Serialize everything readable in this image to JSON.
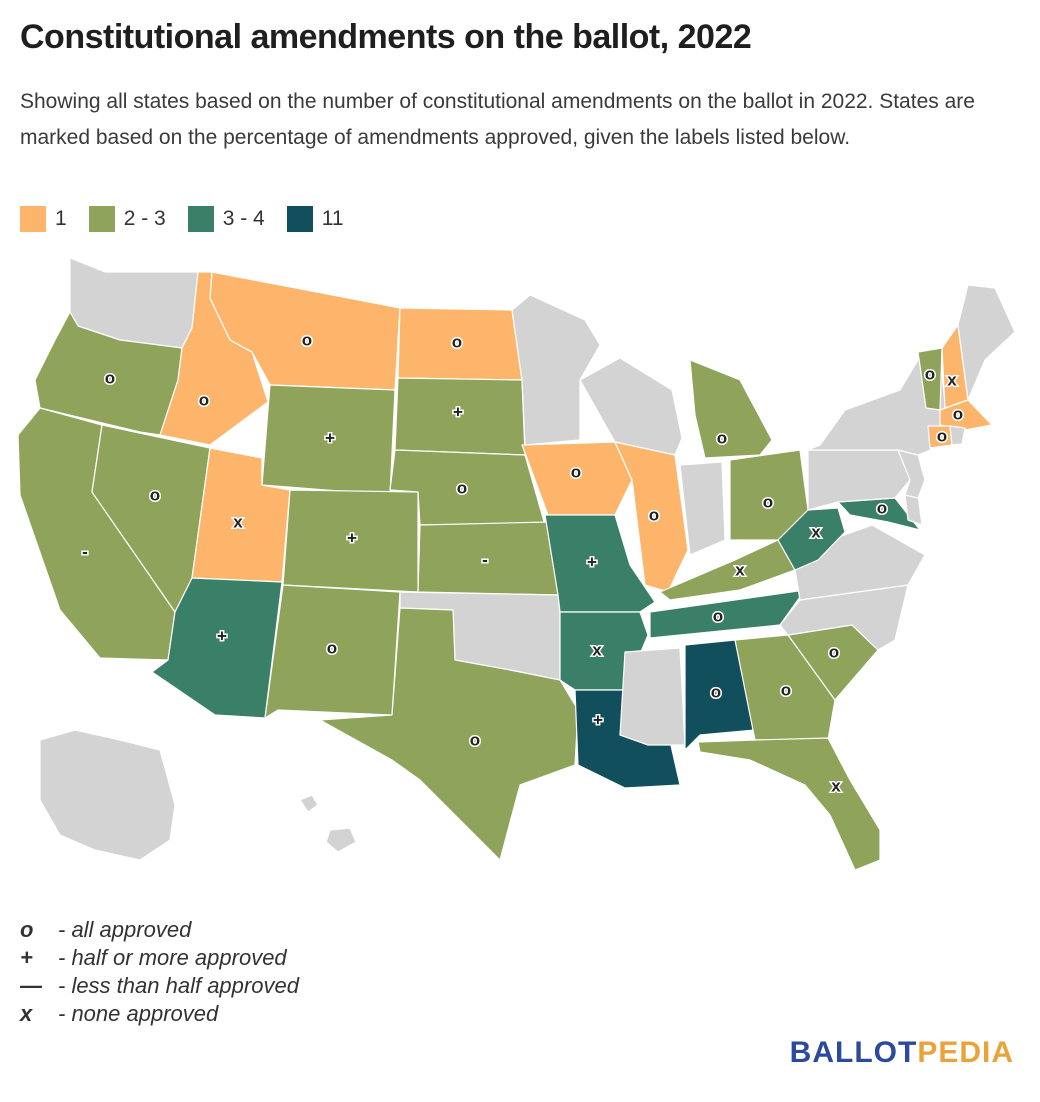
{
  "title": "Constitutional amendments on the ballot, 2022",
  "subtitle": "Showing all states based on the number of constitutional amendments on the ballot in 2022. States are marked based on the percentage of amendments approved, given the labels listed below.",
  "legend": [
    {
      "label": "1",
      "color": "#fdb56c"
    },
    {
      "label": "2 - 3",
      "color": "#8fa35a"
    },
    {
      "label": "3 - 4",
      "color": "#3a7f68"
    },
    {
      "label": "11",
      "color": "#124f5c"
    }
  ],
  "no_data_color": "#d3d3d3",
  "states": [
    {
      "name": "Washington",
      "category": "none",
      "marker": ""
    },
    {
      "name": "Oregon",
      "category": "2 - 3",
      "marker": "o"
    },
    {
      "name": "California",
      "category": "2 - 3",
      "marker": "-"
    },
    {
      "name": "Nevada",
      "category": "2 - 3",
      "marker": "o"
    },
    {
      "name": "Idaho",
      "category": "1",
      "marker": "o"
    },
    {
      "name": "Montana",
      "category": "1",
      "marker": "o"
    },
    {
      "name": "Wyoming",
      "category": "2 - 3",
      "marker": "+"
    },
    {
      "name": "Utah",
      "category": "1",
      "marker": "x"
    },
    {
      "name": "Arizona",
      "category": "3 - 4",
      "marker": "+"
    },
    {
      "name": "Colorado",
      "category": "2 - 3",
      "marker": "+"
    },
    {
      "name": "New Mexico",
      "category": "2 - 3",
      "marker": "o"
    },
    {
      "name": "North Dakota",
      "category": "1",
      "marker": "o"
    },
    {
      "name": "South Dakota",
      "category": "2 - 3",
      "marker": "+"
    },
    {
      "name": "Nebraska",
      "category": "2 - 3",
      "marker": "o"
    },
    {
      "name": "Kansas",
      "category": "2 - 3",
      "marker": "-"
    },
    {
      "name": "Oklahoma",
      "category": "none",
      "marker": ""
    },
    {
      "name": "Texas",
      "category": "2 - 3",
      "marker": "o"
    },
    {
      "name": "Minnesota",
      "category": "none",
      "marker": ""
    },
    {
      "name": "Iowa",
      "category": "1",
      "marker": "o"
    },
    {
      "name": "Missouri",
      "category": "3 - 4",
      "marker": "+"
    },
    {
      "name": "Arkansas",
      "category": "3 - 4",
      "marker": "x"
    },
    {
      "name": "Louisiana",
      "category": "11",
      "marker": "+"
    },
    {
      "name": "Wisconsin",
      "category": "none",
      "marker": ""
    },
    {
      "name": "Illinois",
      "category": "1",
      "marker": "o"
    },
    {
      "name": "Michigan",
      "category": "2 - 3",
      "marker": "o"
    },
    {
      "name": "Indiana",
      "category": "none",
      "marker": ""
    },
    {
      "name": "Ohio",
      "category": "2 - 3",
      "marker": "o"
    },
    {
      "name": "Kentucky",
      "category": "2 - 3",
      "marker": "x"
    },
    {
      "name": "Tennessee",
      "category": "3 - 4",
      "marker": "o"
    },
    {
      "name": "Mississippi",
      "category": "none",
      "marker": ""
    },
    {
      "name": "Alabama",
      "category": "11",
      "marker": "o"
    },
    {
      "name": "Georgia",
      "category": "2 - 3",
      "marker": "o"
    },
    {
      "name": "Florida",
      "category": "2 - 3",
      "marker": "x"
    },
    {
      "name": "South Carolina",
      "category": "2 - 3",
      "marker": "o"
    },
    {
      "name": "North Carolina",
      "category": "none",
      "marker": ""
    },
    {
      "name": "Virginia",
      "category": "none",
      "marker": ""
    },
    {
      "name": "West Virginia",
      "category": "3 - 4",
      "marker": "x"
    },
    {
      "name": "Maryland",
      "category": "3 - 4",
      "marker": "o"
    },
    {
      "name": "Delaware",
      "category": "none",
      "marker": ""
    },
    {
      "name": "Pennsylvania",
      "category": "none",
      "marker": ""
    },
    {
      "name": "New Jersey",
      "category": "none",
      "marker": ""
    },
    {
      "name": "New York",
      "category": "none",
      "marker": ""
    },
    {
      "name": "Vermont",
      "category": "2 - 3",
      "marker": "o"
    },
    {
      "name": "New Hampshire",
      "category": "1",
      "marker": "x"
    },
    {
      "name": "Maine",
      "category": "none",
      "marker": ""
    },
    {
      "name": "Massachusetts",
      "category": "1",
      "marker": "o"
    },
    {
      "name": "Connecticut",
      "category": "1",
      "marker": "o"
    },
    {
      "name": "Rhode Island",
      "category": "none",
      "marker": ""
    },
    {
      "name": "Alaska",
      "category": "none",
      "marker": ""
    },
    {
      "name": "Hawaii",
      "category": "none",
      "marker": ""
    }
  ],
  "key": [
    {
      "symbol": "o",
      "text": "- all approved"
    },
    {
      "symbol": "+",
      "text": "- half or more approved"
    },
    {
      "symbol": "—",
      "text": "- less than half approved"
    },
    {
      "symbol": "x",
      "text": "- none approved"
    }
  ],
  "brand": {
    "part1": "BALLOT",
    "part2": "PEDIA"
  }
}
